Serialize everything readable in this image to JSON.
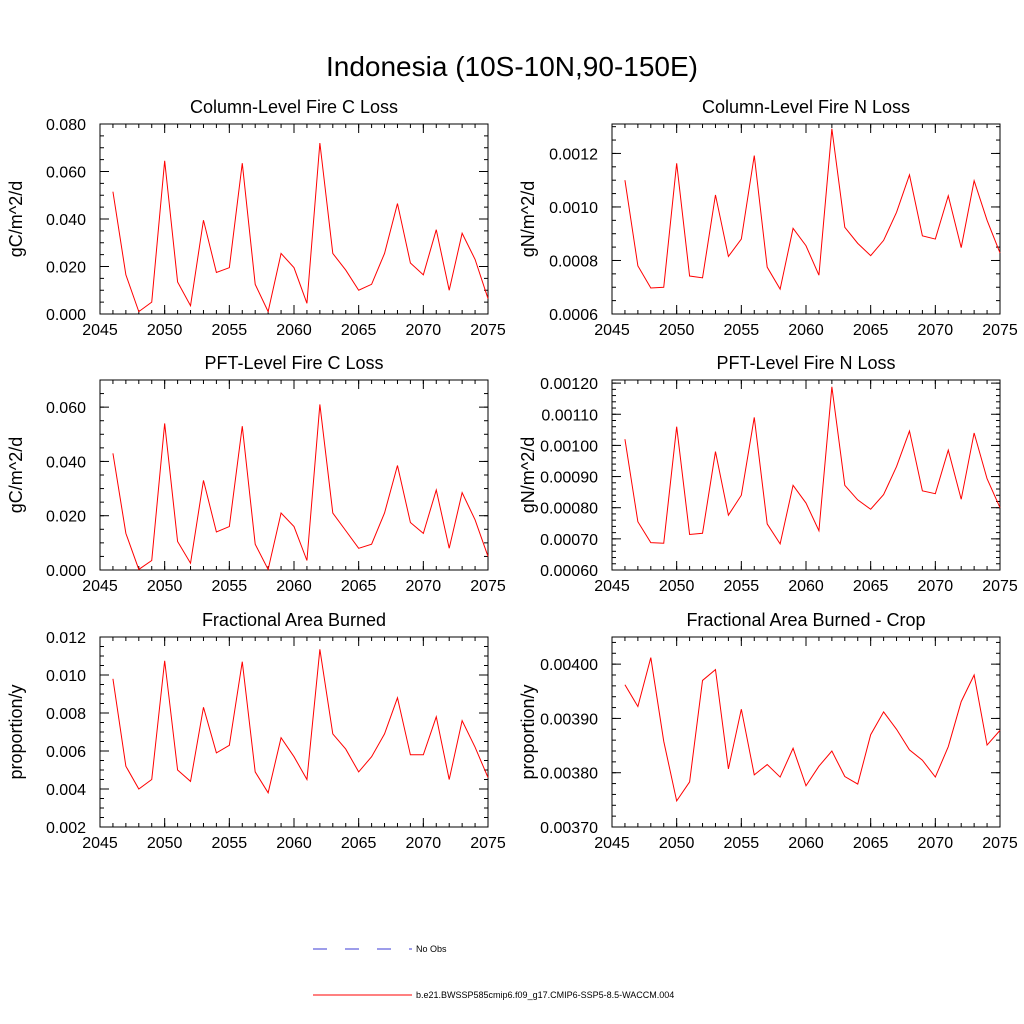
{
  "figure_title": "Indonesia (10S-10N,90-150E)",
  "legend": {
    "no_obs_label": "No Obs",
    "model_label": "b.e21.BWSSP585cmip6.f09_g17.CMIP6-SSP5-8.5-WACCM.004",
    "no_obs_color": "#3b3bd6",
    "model_color": "#ff0000"
  },
  "chart_data": [
    {
      "type": "line",
      "title": "Column-Level Fire C Loss",
      "xlabel": "",
      "ylabel": "gC/m^2/d",
      "xlim": [
        2045,
        2075
      ],
      "ylim": [
        0.0,
        0.08
      ],
      "xticks": [
        2045,
        2050,
        2055,
        2060,
        2065,
        2070,
        2075
      ],
      "xtick_labels": [
        "2045",
        "2050",
        "2055",
        "2060",
        "2065",
        "2070",
        "2075"
      ],
      "yticks": [
        0.0,
        0.02,
        0.04,
        0.06,
        0.08
      ],
      "ytick_labels": [
        "0.000",
        "0.020",
        "0.040",
        "0.060",
        "0.080"
      ],
      "yminor": 0.005,
      "series": [
        {
          "name": "b.e21.BWSSP585cmip6.f09_g17.CMIP6-SSP5-8.5-WACCM.004",
          "color": "#ff0000",
          "x": [
            2046,
            2047,
            2048,
            2049,
            2050,
            2051,
            2052,
            2053,
            2054,
            2055,
            2056,
            2057,
            2058,
            2059,
            2060,
            2061,
            2062,
            2063,
            2064,
            2065,
            2066,
            2067,
            2068,
            2069,
            2070,
            2071,
            2072,
            2073,
            2074,
            2075
          ],
          "values": [
            0.0515,
            0.0165,
            0.001,
            0.005,
            0.0645,
            0.0135,
            0.0035,
            0.0395,
            0.0175,
            0.0195,
            0.0635,
            0.0125,
            0.001,
            0.0255,
            0.0195,
            0.0045,
            0.072,
            0.0255,
            0.0185,
            0.01,
            0.0125,
            0.0255,
            0.0465,
            0.0215,
            0.0165,
            0.0355,
            0.01,
            0.034,
            0.023,
            0.0065
          ]
        }
      ]
    },
    {
      "type": "line",
      "title": "Column-Level Fire N Loss",
      "xlabel": "",
      "ylabel": "gN/m^2/d",
      "xlim": [
        2045,
        2075
      ],
      "ylim": [
        0.0006,
        0.00131
      ],
      "xticks": [
        2045,
        2050,
        2055,
        2060,
        2065,
        2070,
        2075
      ],
      "xtick_labels": [
        "2045",
        "2050",
        "2055",
        "2060",
        "2065",
        "2070",
        "2075"
      ],
      "yticks": [
        0.0006,
        0.0008,
        0.001,
        0.0012
      ],
      "ytick_labels": [
        "0.0006",
        "0.0008",
        "0.0010",
        "0.0012"
      ],
      "yminor": 5e-05,
      "series": [
        {
          "name": "b.e21.BWSSP585cmip6.f09_g17.CMIP6-SSP5-8.5-WACCM.004",
          "color": "#ff0000",
          "x": [
            2046,
            2047,
            2048,
            2049,
            2050,
            2051,
            2052,
            2053,
            2054,
            2055,
            2056,
            2057,
            2058,
            2059,
            2060,
            2061,
            2062,
            2063,
            2064,
            2065,
            2066,
            2067,
            2068,
            2069,
            2070,
            2071,
            2072,
            2073,
            2074,
            2075
          ],
          "values": [
            0.0011,
            0.00078,
            0.000697,
            0.0007,
            0.001163,
            0.000742,
            0.000735,
            0.001045,
            0.000815,
            0.00088,
            0.001192,
            0.000775,
            0.000693,
            0.00092,
            0.000855,
            0.000745,
            0.001292,
            0.000924,
            0.000864,
            0.000818,
            0.000875,
            0.00098,
            0.00112,
            0.000892,
            0.00088,
            0.001042,
            0.000848,
            0.001098,
            0.00095,
            0.000828
          ]
        }
      ]
    },
    {
      "type": "line",
      "title": "PFT-Level Fire C Loss",
      "xlabel": "",
      "ylabel": "gC/m^2/d",
      "xlim": [
        2045,
        2075
      ],
      "ylim": [
        0.0,
        0.07
      ],
      "xticks": [
        2045,
        2050,
        2055,
        2060,
        2065,
        2070,
        2075
      ],
      "xtick_labels": [
        "2045",
        "2050",
        "2055",
        "2060",
        "2065",
        "2070",
        "2075"
      ],
      "yticks": [
        0.0,
        0.02,
        0.04,
        0.06
      ],
      "ytick_labels": [
        "0.000",
        "0.020",
        "0.040",
        "0.060"
      ],
      "yminor": 0.005,
      "series": [
        {
          "name": "b.e21.BWSSP585cmip6.f09_g17.CMIP6-SSP5-8.5-WACCM.004",
          "color": "#ff0000",
          "x": [
            2046,
            2047,
            2048,
            2049,
            2050,
            2051,
            2052,
            2053,
            2054,
            2055,
            2056,
            2057,
            2058,
            2059,
            2060,
            2061,
            2062,
            2063,
            2064,
            2065,
            2066,
            2067,
            2068,
            2069,
            2070,
            2071,
            2072,
            2073,
            2074,
            2075
          ],
          "values": [
            0.043,
            0.0135,
            0.0002,
            0.0035,
            0.054,
            0.0105,
            0.0025,
            0.033,
            0.014,
            0.016,
            0.053,
            0.0095,
            0.0002,
            0.021,
            0.016,
            0.0035,
            0.061,
            0.021,
            0.0145,
            0.008,
            0.0095,
            0.021,
            0.0385,
            0.0175,
            0.0135,
            0.0295,
            0.008,
            0.0285,
            0.0185,
            0.005
          ]
        }
      ]
    },
    {
      "type": "line",
      "title": "PFT-Level Fire N Loss",
      "xlabel": "",
      "ylabel": "gN/m^2/d",
      "xlim": [
        2045,
        2075
      ],
      "ylim": [
        0.0006,
        0.00121
      ],
      "xticks": [
        2045,
        2050,
        2055,
        2060,
        2065,
        2070,
        2075
      ],
      "xtick_labels": [
        "2045",
        "2050",
        "2055",
        "2060",
        "2065",
        "2070",
        "2075"
      ],
      "yticks": [
        0.0006,
        0.0007,
        0.0008,
        0.0009,
        0.001,
        0.0011,
        0.0012
      ],
      "ytick_labels": [
        "0.00060",
        "0.00070",
        "0.00080",
        "0.00090",
        "0.00100",
        "0.00110",
        "0.00120"
      ],
      "yminor": 2e-05,
      "series": [
        {
          "name": "b.e21.BWSSP585cmip6.f09_g17.CMIP6-SSP5-8.5-WACCM.004",
          "color": "#ff0000",
          "x": [
            2046,
            2047,
            2048,
            2049,
            2050,
            2051,
            2052,
            2053,
            2054,
            2055,
            2056,
            2057,
            2058,
            2059,
            2060,
            2061,
            2062,
            2063,
            2064,
            2065,
            2066,
            2067,
            2068,
            2069,
            2070,
            2071,
            2072,
            2073,
            2074,
            2075
          ],
          "values": [
            0.00102,
            0.000755,
            0.000688,
            0.000686,
            0.00106,
            0.000714,
            0.000718,
            0.00098,
            0.000776,
            0.00084,
            0.00109,
            0.000748,
            0.000684,
            0.000872,
            0.000815,
            0.000726,
            0.001188,
            0.000872,
            0.000825,
            0.000795,
            0.000842,
            0.000932,
            0.001046,
            0.000854,
            0.000845,
            0.000985,
            0.000827,
            0.00104,
            0.000893,
            0.0008
          ]
        }
      ]
    },
    {
      "type": "line",
      "title": "Fractional Area Burned",
      "xlabel": "",
      "ylabel": "proportion/y",
      "xlim": [
        2045,
        2075
      ],
      "ylim": [
        0.002,
        0.012
      ],
      "xticks": [
        2045,
        2050,
        2055,
        2060,
        2065,
        2070,
        2075
      ],
      "xtick_labels": [
        "2045",
        "2050",
        "2055",
        "2060",
        "2065",
        "2070",
        "2075"
      ],
      "yticks": [
        0.002,
        0.004,
        0.006,
        0.008,
        0.01,
        0.012
      ],
      "ytick_labels": [
        "0.002",
        "0.004",
        "0.006",
        "0.008",
        "0.010",
        "0.012"
      ],
      "yminor": 0.0005,
      "series": [
        {
          "name": "b.e21.BWSSP585cmip6.f09_g17.CMIP6-SSP5-8.5-WACCM.004",
          "color": "#ff0000",
          "x": [
            2046,
            2047,
            2048,
            2049,
            2050,
            2051,
            2052,
            2053,
            2054,
            2055,
            2056,
            2057,
            2058,
            2059,
            2060,
            2061,
            2062,
            2063,
            2064,
            2065,
            2066,
            2067,
            2068,
            2069,
            2070,
            2071,
            2072,
            2073,
            2074,
            2075
          ],
          "values": [
            0.0098,
            0.0052,
            0.004,
            0.0045,
            0.01075,
            0.005,
            0.0044,
            0.0083,
            0.0059,
            0.0063,
            0.0107,
            0.0049,
            0.0038,
            0.0067,
            0.0057,
            0.0045,
            0.01135,
            0.0069,
            0.0061,
            0.0049,
            0.0057,
            0.0069,
            0.0088,
            0.0058,
            0.0058,
            0.0078,
            0.0045,
            0.0076,
            0.0062,
            0.0046
          ]
        }
      ]
    },
    {
      "type": "line",
      "title": "Fractional Area Burned - Crop",
      "xlabel": "",
      "ylabel": "proportion/y",
      "xlim": [
        2045,
        2075
      ],
      "ylim": [
        0.0037,
        0.00405
      ],
      "xticks": [
        2045,
        2050,
        2055,
        2060,
        2065,
        2070,
        2075
      ],
      "xtick_labels": [
        "2045",
        "2050",
        "2055",
        "2060",
        "2065",
        "2070",
        "2075"
      ],
      "yticks": [
        0.0037,
        0.0038,
        0.0039,
        0.004
      ],
      "ytick_labels": [
        "0.00370",
        "0.00380",
        "0.00390",
        "0.00400"
      ],
      "yminor": 2e-05,
      "series": [
        {
          "name": "b.e21.BWSSP585cmip6.f09_g17.CMIP6-SSP5-8.5-WACCM.004",
          "color": "#ff0000",
          "x": [
            2046,
            2047,
            2048,
            2049,
            2050,
            2051,
            2052,
            2053,
            2054,
            2055,
            2056,
            2057,
            2058,
            2059,
            2060,
            2061,
            2062,
            2063,
            2064,
            2065,
            2066,
            2067,
            2068,
            2069,
            2070,
            2071,
            2072,
            2073,
            2074,
            2075
          ],
          "values": [
            0.003962,
            0.003922,
            0.004012,
            0.003858,
            0.003748,
            0.003783,
            0.00397,
            0.00399,
            0.003807,
            0.003917,
            0.003796,
            0.003815,
            0.003792,
            0.003845,
            0.003776,
            0.003812,
            0.00384,
            0.003793,
            0.003779,
            0.00387,
            0.003912,
            0.00388,
            0.003842,
            0.003823,
            0.003792,
            0.003848,
            0.003931,
            0.00398,
            0.003851,
            0.003878
          ]
        }
      ]
    }
  ]
}
